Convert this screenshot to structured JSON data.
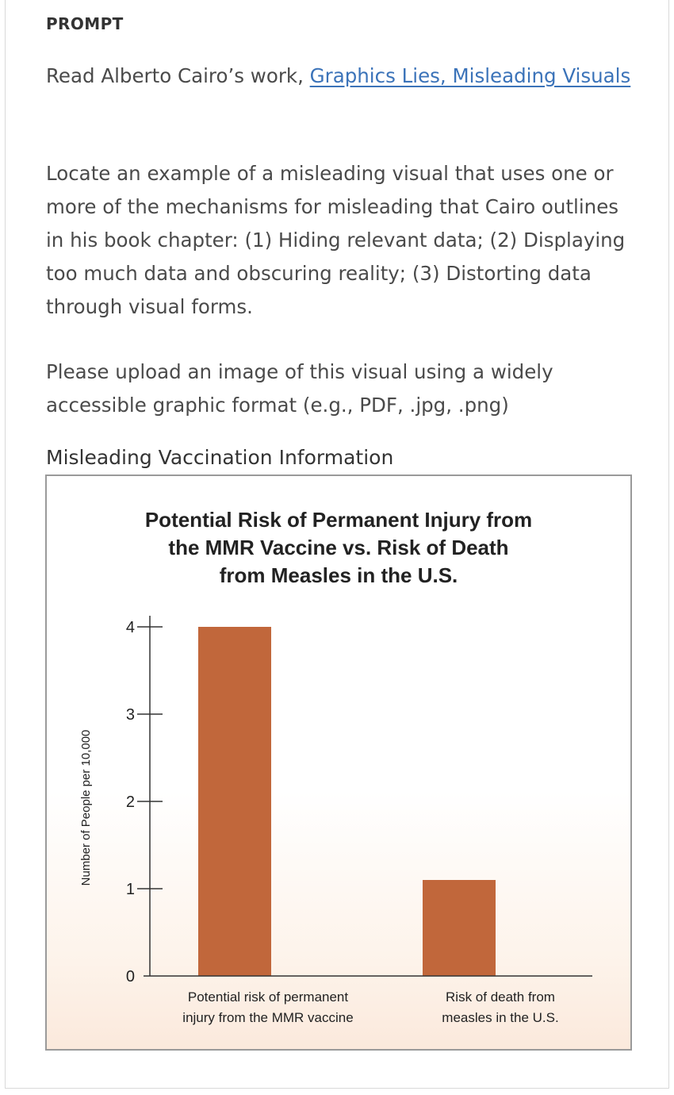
{
  "prompt": {
    "heading": "PROMPT",
    "read_intro": "Read Alberto Cairo’s work, ",
    "read_link": "Graphics Lies, Misleading Visuals",
    "locate_text": "Locate an example of a misleading visual that uses one or more of the mechanisms for misleading that Cairo outlines in his book chapter: (1) Hiding relevant data; (2) Displaying too much data and obscuring reality; (3) Distorting data through visual forms.",
    "upload_text": "Please upload an image of this visual using a widely accessible graphic format (e.g., PDF, .jpg, .png)"
  },
  "figure": {
    "caption": "Misleading Vaccination Information"
  },
  "chart_data": {
    "type": "bar",
    "title_lines": [
      "Potential Risk of Permanent Injury from",
      "the MMR Vaccine vs. Risk of Death",
      "from Measles in the U.S."
    ],
    "ylabel": "Number of People per 10,000",
    "xlabel": "",
    "ylim": [
      0,
      4
    ],
    "yticks": [
      "0",
      "1",
      "2",
      "3",
      "4"
    ],
    "categories": [
      [
        "Potential risk of permanent",
        "injury from the MMR vaccine"
      ],
      [
        "Risk of death from",
        "measles in the U.S."
      ]
    ],
    "values": [
      4,
      1.1
    ],
    "bar_color": "#c1673b",
    "grid": false
  }
}
